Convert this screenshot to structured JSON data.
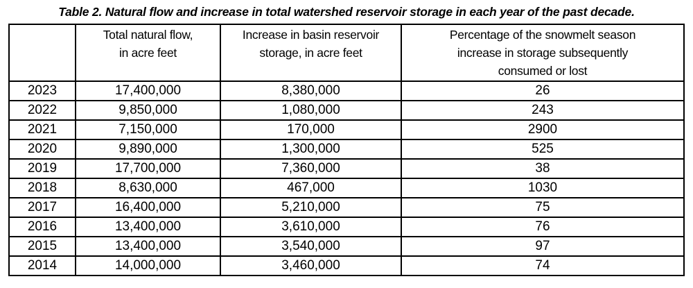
{
  "title": "Table 2. Natural flow and increase in total watershed reservoir storage in each year of the past decade.",
  "colors": {
    "text": "#000000",
    "border": "#000000",
    "background": "#ffffff"
  },
  "table": {
    "columns": [
      {
        "name": "year",
        "lines": [
          "",
          "",
          ""
        ]
      },
      {
        "name": "total-natural-flow",
        "lines": [
          "Total natural flow,",
          "in acre feet",
          ""
        ]
      },
      {
        "name": "storage-increase",
        "lines": [
          "Increase in basin reservoir",
          "storage, in acre feet",
          ""
        ]
      },
      {
        "name": "percentage-consumed",
        "lines": [
          "Percentage of the snowmelt season",
          "increase in storage subsequently",
          "consumed or lost"
        ]
      }
    ],
    "rows": [
      {
        "year": "2023",
        "total_natural_flow": "17,400,000",
        "storage_increase": "8,380,000",
        "pct_consumed_or_lost": "26"
      },
      {
        "year": "2022",
        "total_natural_flow": "9,850,000",
        "storage_increase": "1,080,000",
        "pct_consumed_or_lost": "243"
      },
      {
        "year": "2021",
        "total_natural_flow": "7,150,000",
        "storage_increase": "170,000",
        "pct_consumed_or_lost": "2900"
      },
      {
        "year": "2020",
        "total_natural_flow": "9,890,000",
        "storage_increase": "1,300,000",
        "pct_consumed_or_lost": "525"
      },
      {
        "year": "2019",
        "total_natural_flow": "17,700,000",
        "storage_increase": "7,360,000",
        "pct_consumed_or_lost": "38"
      },
      {
        "year": "2018",
        "total_natural_flow": "8,630,000",
        "storage_increase": "467,000",
        "pct_consumed_or_lost": "1030"
      },
      {
        "year": "2017",
        "total_natural_flow": "16,400,000",
        "storage_increase": "5,210,000",
        "pct_consumed_or_lost": "75"
      },
      {
        "year": "2016",
        "total_natural_flow": "13,400,000",
        "storage_increase": "3,610,000",
        "pct_consumed_or_lost": "76"
      },
      {
        "year": "2015",
        "total_natural_flow": "13,400,000",
        "storage_increase": "3,540,000",
        "pct_consumed_or_lost": "97"
      },
      {
        "year": "2014",
        "total_natural_flow": "14,000,000",
        "storage_increase": "3,460,000",
        "pct_consumed_or_lost": "74"
      }
    ]
  }
}
